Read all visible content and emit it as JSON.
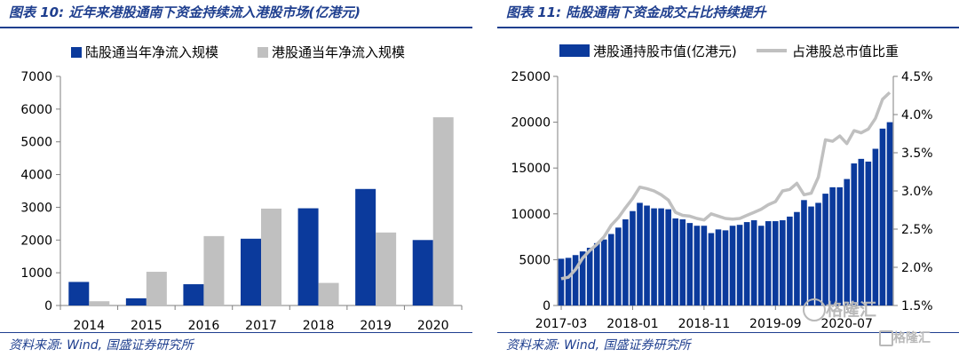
{
  "left": {
    "title": "图表 10:  近年来港股通南下资金持续流入港股市场(亿港元)",
    "source": "资料来源:  Wind,  国盛证券研究所"
  },
  "right": {
    "title": "图表 11:  陆股通南下资金成交占比持续提升",
    "source": "资料来源:  Wind,  国盛证券研究所"
  },
  "watermark": {
    "main": "格隆汇",
    "sub": "格隆汇"
  },
  "colors": {
    "blue": "#0b3a9c",
    "gray": "#c0c0c0",
    "title": "#1f3f8f",
    "axis": "#7f7f7f"
  },
  "chart_data": [
    {
      "type": "bar",
      "categories": [
        "2014",
        "2015",
        "2016",
        "2017",
        "2018",
        "2019",
        "2020"
      ],
      "series": [
        {
          "name": "陆股通当年净流入规模",
          "values": [
            720,
            220,
            650,
            2040,
            2970,
            3560,
            2000
          ]
        },
        {
          "name": "港股通当年净流入规模",
          "values": [
            130,
            1030,
            2120,
            2960,
            690,
            2230,
            5750
          ]
        }
      ],
      "yticks": [
        0,
        1000,
        2000,
        3000,
        4000,
        5000,
        6000,
        7000
      ],
      "ylim": [
        0,
        7000
      ],
      "legend": "top"
    },
    {
      "type": "bar+line",
      "xticks": [
        "2017-03",
        "2018-01",
        "2018-11",
        "2019-09",
        "2020-07"
      ],
      "bar_series": {
        "name": "港股通持股市值(亿港元)",
        "values": [
          5100,
          5200,
          5500,
          5900,
          6300,
          6800,
          7200,
          7800,
          8500,
          9400,
          10300,
          11200,
          10900,
          10600,
          10600,
          10500,
          9500,
          9400,
          9000,
          8700,
          8700,
          7900,
          8300,
          8200,
          8700,
          8800,
          9100,
          9300,
          8700,
          9200,
          9200,
          9300,
          9700,
          10200,
          11500,
          10800,
          11200,
          12200,
          12900,
          12900,
          13800,
          15500,
          16000,
          15700,
          17100,
          19300,
          20000
        ]
      },
      "line_series": {
        "name": "占港股总市值比重",
        "values": [
          1.85,
          1.87,
          1.97,
          2.12,
          2.22,
          2.3,
          2.4,
          2.55,
          2.65,
          2.78,
          2.9,
          3.05,
          3.03,
          3.0,
          2.95,
          2.88,
          2.72,
          2.68,
          2.67,
          2.64,
          2.62,
          2.7,
          2.67,
          2.64,
          2.63,
          2.64,
          2.68,
          2.72,
          2.76,
          2.82,
          2.86,
          3.0,
          3.02,
          3.1,
          2.95,
          2.97,
          3.18,
          3.67,
          3.65,
          3.72,
          3.62,
          3.79,
          3.76,
          3.81,
          3.95,
          4.2,
          4.29
        ]
      },
      "yticks_left": [
        0,
        5000,
        10000,
        15000,
        20000,
        25000
      ],
      "ylim_left": [
        0,
        25000
      ],
      "yticks_right": [
        "1.5%",
        "2.0%",
        "2.5%",
        "3.0%",
        "3.5%",
        "4.0%",
        "4.5%"
      ],
      "ylim_right": [
        1.5,
        4.5
      ],
      "legend": "top"
    }
  ]
}
